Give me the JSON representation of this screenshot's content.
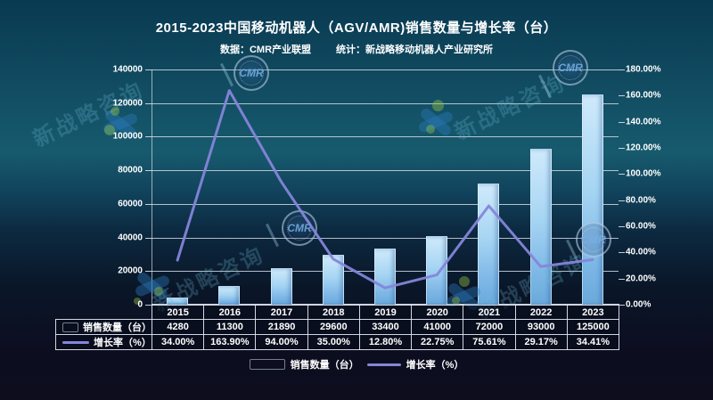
{
  "chart_data": {
    "type": "combo (bar + line)",
    "title": "2015-2023中国移动机器人（AGV/AMR)销售数量与增长率（台）",
    "categories": [
      "2015",
      "2016",
      "2017",
      "2018",
      "2019",
      "2020",
      "2021",
      "2022",
      "2023"
    ],
    "series": [
      {
        "name": "销售数量（台）",
        "type": "bar",
        "axis": "left",
        "color": "#8cc3ee",
        "values": [
          4280,
          11300,
          21890,
          29600,
          33400,
          41000,
          72000,
          93000,
          125000
        ]
      },
      {
        "name": "增长率（%）",
        "type": "line",
        "axis": "right",
        "color": "#8585da",
        "values": [
          34.0,
          163.9,
          94.0,
          35.0,
          12.8,
          22.75,
          75.61,
          29.17,
          34.41
        ],
        "labels": [
          "34.00%",
          "163.90%",
          "94.00%",
          "35.00%",
          "12.80%",
          "22.75%",
          "75.61%",
          "29.17%",
          "34.41%"
        ]
      }
    ],
    "left_axis": {
      "min": 0,
      "max": 140000,
      "step": 20000,
      "tick_labels": [
        "0",
        "20000",
        "40000",
        "60000",
        "80000",
        "100000",
        "120000",
        "140000"
      ]
    },
    "right_axis": {
      "min": 0,
      "max": 180,
      "step": 20,
      "tick_labels": [
        "0.00%",
        "20.00%",
        "40.00%",
        "60.00%",
        "80.00%",
        "100.00%",
        "120.00%",
        "140.00%",
        "160.00%",
        "180.00%"
      ]
    },
    "grid": true,
    "legend_position": "bottom",
    "table": {
      "row_headers": [
        "销售数量（台）",
        "增长率（%）"
      ],
      "rows": [
        [
          "4280",
          "11300",
          "21890",
          "29600",
          "33400",
          "41000",
          "72000",
          "93000",
          "125000"
        ],
        [
          "34.00%",
          "163.90%",
          "94.00%",
          "35.00%",
          "12.80%",
          "22.75%",
          "75.61%",
          "29.17%",
          "34.41%"
        ]
      ]
    }
  },
  "subtitle": {
    "source": "数据：CMR产业联盟",
    "stat": "统计：新战略移动机器人产业研究所"
  },
  "watermark": {
    "text": "新战略咨询",
    "logo_text": "CMR"
  },
  "colors": {
    "background_top": "#093a52",
    "background_mid": "#175a6e",
    "background_bottom": "#0d0d1e",
    "bar_light": "#cfeafb",
    "bar_dark": "#6aa9dc",
    "line": "#8585da",
    "gridline": "#d0d8e0",
    "text": "#ffffff"
  }
}
